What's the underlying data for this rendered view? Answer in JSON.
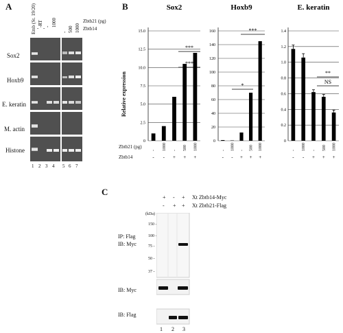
{
  "panel_a": {
    "label": "A",
    "lane_headers": [
      "Emb (St. 19/20)",
      "-RT",
      "-",
      "1000",
      "-",
      "500",
      "1000"
    ],
    "header_right": "Zbtb21 (pg)",
    "header_right2": "Zbtb14",
    "zbtb14_marks": [
      "-",
      "-"
    ],
    "rows": [
      "Sox2",
      "Hoxb9",
      "E. keratin",
      "M. actin",
      "Histone"
    ],
    "lane_numbers": [
      "1",
      "2",
      "3",
      "4",
      "5",
      "6",
      "7"
    ]
  },
  "panel_b": {
    "label": "B",
    "ylabel": "Relative expression",
    "row_label_zbtb21": "Zbtb21 (pg)",
    "row_label_zbtb14": "Zbtb14"
  },
  "chart_data": [
    {
      "type": "bar",
      "title": "Sox2",
      "ylabel": "Relative expression",
      "yticks": [
        "0",
        "2.5",
        "5.0",
        "7.5",
        "10.0",
        "12.5",
        "15.0"
      ],
      "ylim": [
        0,
        15
      ],
      "categories": [
        "1",
        "2",
        "3",
        "4",
        "5"
      ],
      "zbtb21": [
        "-",
        "1000",
        "-",
        "500",
        "1000"
      ],
      "zbtb14": [
        "-",
        "-",
        "+",
        "+",
        "+"
      ],
      "values": [
        1.0,
        2.0,
        6.0,
        10.5,
        12.0
      ],
      "annotations": [
        "***",
        "***"
      ]
    },
    {
      "type": "bar",
      "title": "Hoxb9",
      "yticks": [
        "0",
        "20",
        "40",
        "60",
        "80",
        "100",
        "120",
        "140",
        "160"
      ],
      "ylim": [
        0,
        160
      ],
      "categories": [
        "1",
        "2",
        "3",
        "4",
        "5"
      ],
      "zbtb21": [
        "-",
        "1000",
        "-",
        "500",
        "1000"
      ],
      "zbtb14": [
        "-",
        "-",
        "+",
        "+",
        "+"
      ],
      "values": [
        1.0,
        0.5,
        12.0,
        70.0,
        145.0
      ],
      "annotations": [
        "*",
        "***"
      ]
    },
    {
      "type": "bar",
      "title": "E. keratin",
      "yticks": [
        "0",
        "0.2",
        "0.4",
        "0.6",
        "0.8",
        "1.0",
        "1.2",
        "1.4"
      ],
      "ylim": [
        0,
        1.4
      ],
      "categories": [
        "1",
        "2",
        "3",
        "4",
        "5"
      ],
      "zbtb21": [
        "-",
        "1000",
        "-",
        "500",
        "1000"
      ],
      "zbtb14": [
        "-",
        "-",
        "+",
        "+",
        "+"
      ],
      "values": [
        1.17,
        1.06,
        0.62,
        0.56,
        0.36
      ],
      "errors": [
        0.05,
        0.05,
        0.03,
        0.03,
        0.03
      ],
      "annotations": [
        "NS",
        "**"
      ]
    }
  ],
  "panel_c": {
    "label": "C",
    "header_row1": [
      "+",
      "-",
      "+"
    ],
    "header_row2": [
      "-",
      "+",
      "+"
    ],
    "header_label1": "Xt Zbtb14-Myc",
    "header_label2": "Xt Zbtb21-Flag",
    "kda": "(kDa)",
    "markers": [
      "150",
      "100",
      "75",
      "50",
      "37"
    ],
    "blot1_label": "IP: Flag",
    "blot1_label2": "IB: Myc",
    "blot2_label": "IB: Myc",
    "blot3_label": "IB: Flag",
    "lanes": [
      "1",
      "2",
      "3"
    ]
  }
}
